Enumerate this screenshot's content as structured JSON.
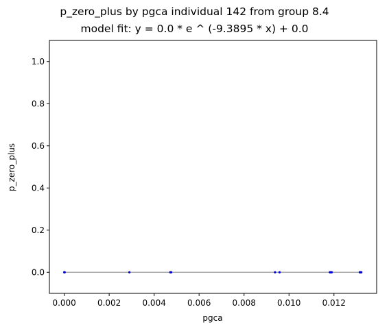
{
  "chart_data": {
    "type": "scatter",
    "title": "p_zero_plus by pgca individual 142 from group 8.4",
    "subtitle": "model fit: y = 0.0 * e ^ (-9.3895 * x) + 0.0",
    "xlabel": "pgca",
    "ylabel": "p_zero_plus",
    "xlim": [
      -0.00066,
      0.0139
    ],
    "ylim": [
      -0.1,
      1.1
    ],
    "xticks": [
      0.0,
      0.002,
      0.004,
      0.006,
      0.008,
      0.01,
      0.012
    ],
    "xtick_labels": [
      "0.000",
      "0.002",
      "0.004",
      "0.006",
      "0.008",
      "0.010",
      "0.012"
    ],
    "yticks": [
      0.0,
      0.2,
      0.4,
      0.6,
      0.8,
      1.0
    ],
    "ytick_labels": [
      "0.0",
      "0.2",
      "0.4",
      "0.6",
      "0.8",
      "1.0"
    ],
    "grid": false,
    "legend": "none",
    "points": {
      "x": [
        0.0,
        2e-05,
        0.0029,
        0.00472,
        0.00476,
        0.00938,
        0.00958,
        0.01182,
        0.01186,
        0.0119,
        0.01315,
        0.01318,
        0.01322
      ],
      "y": [
        0,
        0,
        0,
        0,
        0,
        0,
        0,
        0,
        0,
        0,
        0,
        0,
        0
      ],
      "color": "#0000cc"
    },
    "fit_line": {
      "x": [
        0.0,
        0.01322
      ],
      "y": [
        0.0,
        0.0
      ],
      "color": "#aaaaaa"
    }
  }
}
